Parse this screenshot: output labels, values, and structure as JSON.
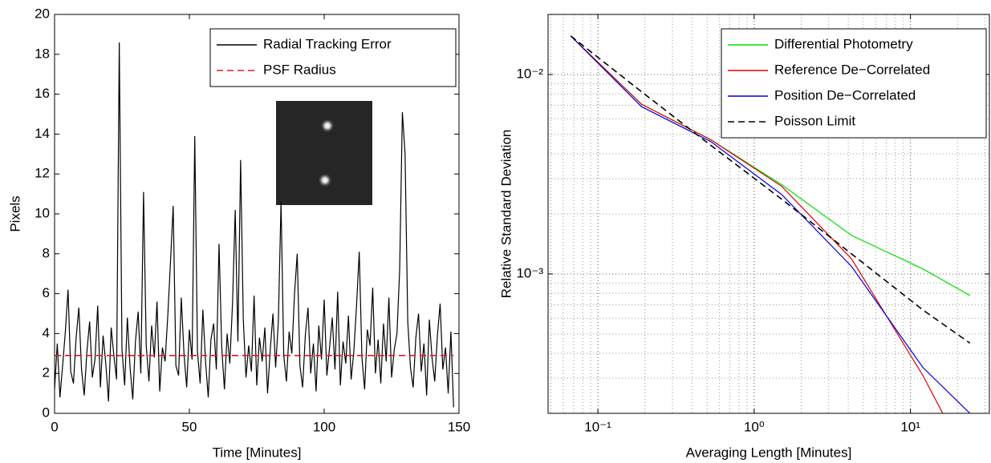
{
  "chart_data": [
    {
      "type": "line",
      "xlabel": "Time [Minutes]",
      "ylabel": "Pixels",
      "xlim": [
        0,
        150
      ],
      "xticks": [
        0,
        50,
        100,
        150
      ],
      "ylim": [
        0,
        20
      ],
      "yticks": [
        0,
        2,
        4,
        6,
        8,
        10,
        12,
        14,
        16,
        18,
        20
      ],
      "grid": false,
      "legend": "upper right",
      "series": [
        {
          "name": "Radial Tracking Error",
          "color": "#000000",
          "dash": false,
          "x": [
            0,
            1,
            2,
            3,
            4,
            5,
            6,
            7,
            8,
            9,
            10,
            11,
            12,
            13,
            14,
            15,
            16,
            17,
            18,
            19,
            20,
            21,
            22,
            23,
            24,
            25,
            26,
            27,
            28,
            29,
            30,
            31,
            32,
            33,
            34,
            35,
            36,
            37,
            38,
            39,
            40,
            41,
            42,
            43,
            44,
            45,
            46,
            47,
            48,
            49,
            50,
            51,
            52,
            53,
            54,
            55,
            56,
            57,
            58,
            59,
            60,
            61,
            62,
            63,
            64,
            65,
            66,
            67,
            68,
            69,
            70,
            71,
            72,
            73,
            74,
            75,
            76,
            77,
            78,
            79,
            80,
            81,
            82,
            83,
            84,
            85,
            86,
            87,
            88,
            89,
            90,
            91,
            92,
            93,
            94,
            95,
            96,
            97,
            98,
            99,
            100,
            101,
            102,
            103,
            104,
            105,
            106,
            107,
            108,
            109,
            110,
            111,
            112,
            113,
            114,
            115,
            116,
            117,
            118,
            119,
            120,
            121,
            122,
            123,
            124,
            125,
            126,
            127,
            128,
            129,
            130,
            131,
            132,
            133,
            134,
            135,
            136,
            137,
            138,
            139,
            140,
            141,
            142,
            143,
            144,
            145,
            146,
            147,
            148
          ],
          "values": [
            1.2,
            3.5,
            0.8,
            2.4,
            4.1,
            6.2,
            2.1,
            1.5,
            3.8,
            5.3,
            2.2,
            0.9,
            3.1,
            4.6,
            1.8,
            2.7,
            5.4,
            1.3,
            3.9,
            2.5,
            0.6,
            4.3,
            2.9,
            1.7,
            18.6,
            3.2,
            1.4,
            4.8,
            2.3,
            0.7,
            3.6,
            5.1,
            2.0,
            11.1,
            3.4,
            1.6,
            4.4,
            2.8,
            5.6,
            1.1,
            3.3,
            2.6,
            4.9,
            7.6,
            10.4,
            2.4,
            1.9,
            5.8,
            3.0,
            1.3,
            4.2,
            2.7,
            13.9,
            3.1,
            1.5,
            5.2,
            2.6,
            0.8,
            3.7,
            4.5,
            2.2,
            8.5,
            3.3,
            1.2,
            4.0,
            2.5,
            5.5,
            10.2,
            3.6,
            12.7,
            4.7,
            1.8,
            3.4,
            2.1,
            5.9,
            1.4,
            3.8,
            2.6,
            4.3,
            1.0,
            3.2,
            5.0,
            2.3,
            4.6,
            10.6,
            2.9,
            1.6,
            4.1,
            3.0,
            6.0,
            8.0,
            2.4,
            1.3,
            3.9,
            5.3,
            2.0,
            3.5,
            1.1,
            4.4,
            2.7,
            5.7,
            1.9,
            3.3,
            4.8,
            2.2,
            6.1,
            1.4,
            3.6,
            2.5,
            4.9,
            1.7,
            3.1,
            5.4,
            8.1,
            2.8,
            1.2,
            4.2,
            3.4,
            6.3,
            2.0,
            3.7,
            1.5,
            4.5,
            2.6,
            5.8,
            1.8,
            3.2,
            4.0,
            7.2,
            15.1,
            13.0,
            4.6,
            2.3,
            1.3,
            3.8,
            5.0,
            2.1,
            3.5,
            0.9,
            4.7,
            2.8,
            1.6,
            3.9,
            5.5,
            2.2,
            3.3,
            1.0,
            4.1,
            0.3
          ]
        },
        {
          "name": "PSF Radius",
          "color": "#e41a1c",
          "dash": true,
          "x": [
            0,
            148
          ],
          "values": [
            2.9,
            2.9
          ]
        }
      ]
    },
    {
      "type": "line",
      "xlabel": "Averaging Length [Minutes]",
      "ylabel": "Relative Standard Deviation",
      "log_x": true,
      "log_y": true,
      "xlim": [
        0.048,
        32
      ],
      "xticks": [
        {
          "value": 0.1,
          "label": "10⁻¹"
        },
        {
          "value": 1,
          "label": "10⁰"
        },
        {
          "value": 10,
          "label": "10¹"
        }
      ],
      "ylim": [
        0.0002,
        0.02
      ],
      "yticks": [
        {
          "value": 0.001,
          "label": "10⁻³"
        },
        {
          "value": 0.01,
          "label": "10⁻²"
        }
      ],
      "grid": true,
      "minor_grid": true,
      "legend": "upper right",
      "x": [
        0.067,
        0.19,
        0.53,
        1.5,
        4.2,
        12,
        24
      ],
      "series": [
        {
          "name": "Differential Photometry",
          "color": "#00e000",
          "dash": false,
          "values": [
            0.0156,
            0.0071,
            0.0047,
            0.0028,
            0.00156,
            0.00106,
            0.00078
          ]
        },
        {
          "name": "Reference De−Correlated",
          "color": "#e00000",
          "dash": false,
          "values": [
            0.0156,
            0.0071,
            0.0047,
            0.00275,
            0.00119,
            0.00031,
            0.00011
          ]
        },
        {
          "name": "Position De−Correlated",
          "color": "#0000e0",
          "dash": false,
          "values": [
            0.0156,
            0.0069,
            0.0046,
            0.0025,
            0.00109,
            0.00034,
            0.0002
          ]
        },
        {
          "name": "Poisson Limit",
          "color": "#000000",
          "dash": true,
          "values": [
            0.0156,
            0.0082,
            0.0044,
            0.00237,
            0.00126,
            0.00066,
            0.00045
          ]
        }
      ]
    }
  ]
}
